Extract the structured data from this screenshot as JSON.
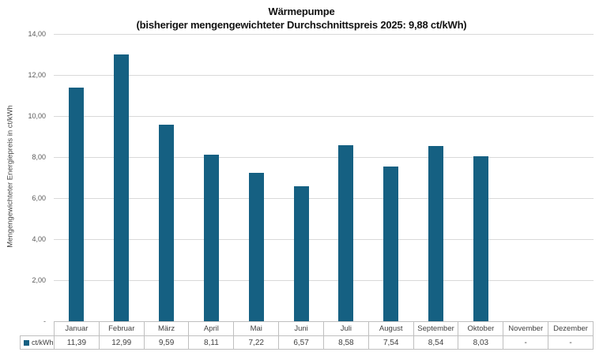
{
  "header": {
    "title": "Wärmepumpe",
    "subtitle": "(bisheriger mengengewichteter Durchschnittspreis 2025: 9,88 ct/kWh)"
  },
  "colors": {
    "bar": "#156082",
    "gridline": "#d9d9d9",
    "table_border": "#bfbfbf",
    "tick_text": "#595959",
    "table_text": "#404040"
  },
  "chart_data": {
    "type": "bar",
    "title": "Wärmepumpe",
    "subtitle": "(bisheriger mengengewichteter Durchschnittspreis 2025: 9,88 ct/kWh)",
    "xlabel": "",
    "ylabel": "Mengengewichteter Energiepreis in ct/kWh",
    "legend_label": "ct/kWh",
    "legend_position": "table-left",
    "grid": true,
    "ylim": [
      0,
      14
    ],
    "ytick_step": 2,
    "ytick_labels": [
      "-",
      "2,00",
      "4,00",
      "6,00",
      "8,00",
      "10,00",
      "12,00",
      "14,00"
    ],
    "categories": [
      "Januar",
      "Februar",
      "März",
      "April",
      "Mai",
      "Juni",
      "Juli",
      "August",
      "September",
      "Oktober",
      "November",
      "Dezember"
    ],
    "values": [
      11.39,
      12.99,
      9.59,
      8.11,
      7.22,
      6.57,
      8.58,
      7.54,
      8.54,
      8.03,
      null,
      null
    ],
    "value_labels": [
      "11,39",
      "12,99",
      "9,59",
      "8,11",
      "7,22",
      "6,57",
      "8,58",
      "7,54",
      "8,54",
      "8,03",
      "-",
      "-"
    ]
  }
}
